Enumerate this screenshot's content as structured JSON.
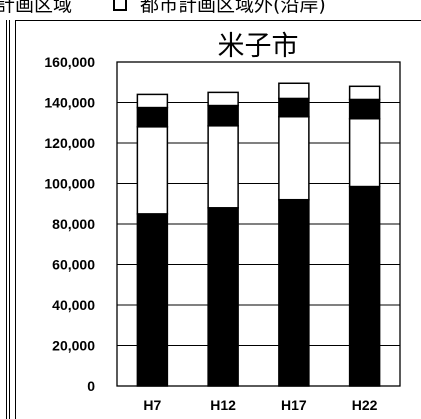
{
  "legend": {
    "left_text": "計画区域",
    "right_text": "都市計画区域外(沿岸)"
  },
  "chart_data": {
    "type": "bar",
    "stacked": true,
    "title": "米子市",
    "categories": [
      "H7",
      "H12",
      "H17",
      "H22"
    ],
    "series": [
      {
        "color": "#000000",
        "values": [
          85000,
          88000,
          92000,
          98500
        ]
      },
      {
        "color": "#ffffff",
        "values": [
          43000,
          40500,
          41000,
          33500
        ]
      },
      {
        "color": "#000000",
        "values": [
          9500,
          10000,
          9000,
          9500
        ]
      },
      {
        "color": "#ffffff",
        "values": [
          6500,
          6500,
          7500,
          6500
        ]
      }
    ],
    "ylim": [
      0,
      160000
    ],
    "yticks": [
      "0",
      "20,000",
      "40,000",
      "60,000",
      "80,000",
      "100,000",
      "120,000",
      "140,000",
      "160,000"
    ],
    "grid": true
  }
}
